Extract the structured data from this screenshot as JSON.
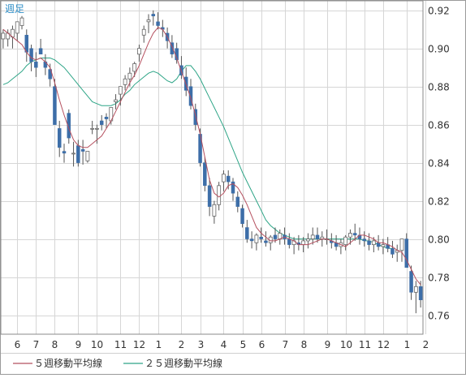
{
  "chart_data": {
    "type": "candlestick",
    "period_label": "週足",
    "x_tick_labels": [
      "6",
      "7",
      "8",
      "9",
      "10",
      "11",
      "12",
      "1",
      "2",
      "3",
      "4",
      "5",
      "6",
      "7",
      "8",
      "9",
      "10",
      "11",
      "12",
      "1",
      "2"
    ],
    "x_tick_week_index": [
      3,
      7,
      11,
      16,
      20,
      25,
      29,
      33,
      38,
      42,
      47,
      51,
      55,
      60,
      64,
      69,
      73,
      77,
      81,
      86,
      90
    ],
    "y_ticks": [
      0.76,
      0.78,
      0.8,
      0.82,
      0.84,
      0.86,
      0.88,
      0.9,
      0.92
    ],
    "y_tick_labels": [
      "0.76",
      "0.78",
      "0.80",
      "0.82",
      "0.84",
      "0.86",
      "0.88",
      "0.90",
      "0.92"
    ],
    "ylim": [
      0.75,
      0.925
    ],
    "grid": true,
    "colors": {
      "up": "#ffffff",
      "down": "#3d6ea8",
      "wick": "#555555",
      "ma5": "#b5505f",
      "ma25": "#2ea587"
    },
    "series": [
      {
        "name": "５週移動平均線",
        "color": "#b5505f",
        "values": [
          0.91,
          0.908,
          0.906,
          0.904,
          0.902,
          0.898,
          0.895,
          0.894,
          0.895,
          0.893,
          0.89,
          0.882,
          0.873,
          0.865,
          0.858,
          0.852,
          0.849,
          0.848,
          0.848,
          0.85,
          0.852,
          0.854,
          0.858,
          0.862,
          0.867,
          0.872,
          0.877,
          0.882,
          0.886,
          0.891,
          0.897,
          0.903,
          0.908,
          0.911,
          0.91,
          0.906,
          0.901,
          0.895,
          0.888,
          0.881,
          0.874,
          0.865,
          0.855,
          0.843,
          0.831,
          0.824,
          0.822,
          0.824,
          0.828,
          0.829,
          0.827,
          0.823,
          0.818,
          0.812,
          0.806,
          0.803,
          0.801,
          0.799,
          0.799,
          0.8,
          0.801,
          0.8,
          0.799,
          0.797,
          0.797,
          0.797,
          0.798,
          0.799,
          0.8,
          0.8,
          0.799,
          0.798,
          0.797,
          0.796,
          0.798,
          0.8,
          0.802,
          0.802,
          0.801,
          0.8,
          0.798,
          0.798,
          0.797,
          0.796,
          0.794,
          0.793,
          0.789,
          0.784,
          0.779,
          0.776
        ]
      },
      {
        "name": "２５週移動平均線",
        "color": "#2ea587",
        "values": [
          0.881,
          0.882,
          0.884,
          0.886,
          0.888,
          0.891,
          0.893,
          0.894,
          0.895,
          0.895,
          0.895,
          0.894,
          0.892,
          0.89,
          0.887,
          0.884,
          0.881,
          0.878,
          0.875,
          0.872,
          0.871,
          0.87,
          0.87,
          0.87,
          0.871,
          0.873,
          0.876,
          0.878,
          0.881,
          0.883,
          0.885,
          0.887,
          0.888,
          0.887,
          0.885,
          0.883,
          0.882,
          0.884,
          0.888,
          0.891,
          0.891,
          0.888,
          0.884,
          0.879,
          0.874,
          0.869,
          0.864,
          0.859,
          0.853,
          0.847,
          0.841,
          0.835,
          0.83,
          0.825,
          0.82,
          0.815,
          0.81,
          0.807,
          0.805,
          0.803,
          0.802,
          0.801,
          0.8,
          0.8,
          0.8,
          0.8,
          0.8,
          0.8,
          0.8,
          0.8,
          0.8,
          0.8,
          0.8,
          0.8,
          0.8,
          0.8,
          0.8,
          0.799,
          0.799,
          0.798,
          0.797,
          0.796,
          0.795,
          0.795
        ]
      },
      {
        "name": "candles",
        "values": [
          [
            0.905,
            0.91,
            0.9,
            0.908
          ],
          [
            0.905,
            0.91,
            0.901,
            0.908
          ],
          [
            0.906,
            0.912,
            0.9,
            0.91
          ],
          [
            0.908,
            0.912,
            0.904,
            0.914
          ],
          [
            0.912,
            0.917,
            0.91,
            0.916
          ],
          [
            0.907,
            0.91,
            0.893,
            0.898
          ],
          [
            0.9,
            0.902,
            0.888,
            0.893
          ],
          [
            0.893,
            0.898,
            0.885,
            0.89
          ],
          [
            0.9,
            0.905,
            0.897,
            0.897
          ],
          [
            0.893,
            0.897,
            0.886,
            0.89
          ],
          [
            0.889,
            0.892,
            0.88,
            0.884
          ],
          [
            0.88,
            0.884,
            0.86,
            0.86
          ],
          [
            0.858,
            0.862,
            0.843,
            0.848
          ],
          [
            0.846,
            0.85,
            0.84,
            0.845
          ],
          [
            0.866,
            0.868,
            0.85,
            0.853
          ],
          [
            0.845,
            0.851,
            0.838,
            0.845
          ],
          [
            0.849,
            0.852,
            0.838,
            0.84
          ],
          [
            0.847,
            0.852,
            0.839,
            0.846
          ],
          [
            0.841,
            0.846,
            0.84,
            0.846
          ],
          [
            0.858,
            0.862,
            0.855,
            0.858
          ],
          [
            0.858,
            0.86,
            0.85,
            0.858
          ],
          [
            0.862,
            0.865,
            0.857,
            0.86
          ],
          [
            0.864,
            0.866,
            0.858,
            0.863
          ],
          [
            0.862,
            0.867,
            0.86,
            0.869
          ],
          [
            0.872,
            0.876,
            0.868,
            0.873
          ],
          [
            0.876,
            0.88,
            0.87,
            0.88
          ],
          [
            0.881,
            0.886,
            0.878,
            0.884
          ],
          [
            0.884,
            0.89,
            0.88,
            0.887
          ],
          [
            0.888,
            0.893,
            0.885,
            0.892
          ],
          [
            0.897,
            0.902,
            0.893,
            0.9
          ],
          [
            0.907,
            0.912,
            0.903,
            0.91
          ],
          [
            0.914,
            0.918,
            0.908,
            0.915
          ],
          [
            0.918,
            0.92,
            0.912,
            0.917
          ],
          [
            0.914,
            0.919,
            0.91,
            0.912
          ],
          [
            0.911,
            0.915,
            0.906,
            0.91
          ],
          [
            0.908,
            0.911,
            0.9,
            0.904
          ],
          [
            0.903,
            0.907,
            0.895,
            0.897
          ],
          [
            0.9,
            0.903,
            0.892,
            0.894
          ],
          [
            0.891,
            0.896,
            0.884,
            0.886
          ],
          [
            0.885,
            0.89,
            0.875,
            0.878
          ],
          [
            0.88,
            0.884,
            0.868,
            0.87
          ],
          [
            0.868,
            0.871,
            0.857,
            0.86
          ],
          [
            0.855,
            0.858,
            0.838,
            0.84
          ],
          [
            0.84,
            0.843,
            0.825,
            0.828
          ],
          [
            0.828,
            0.832,
            0.812,
            0.817
          ],
          [
            0.812,
            0.82,
            0.808,
            0.818
          ],
          [
            0.818,
            0.83,
            0.815,
            0.828
          ],
          [
            0.83,
            0.836,
            0.825,
            0.834
          ],
          [
            0.833,
            0.836,
            0.826,
            0.83
          ],
          [
            0.83,
            0.832,
            0.82,
            0.824
          ],
          [
            0.822,
            0.825,
            0.814,
            0.817
          ],
          [
            0.816,
            0.818,
            0.806,
            0.808
          ],
          [
            0.806,
            0.81,
            0.798,
            0.8
          ],
          [
            0.8,
            0.804,
            0.795,
            0.799
          ],
          [
            0.798,
            0.803,
            0.794,
            0.802
          ],
          [
            0.801,
            0.806,
            0.798,
            0.8
          ],
          [
            0.799,
            0.804,
            0.796,
            0.798
          ],
          [
            0.798,
            0.802,
            0.794,
            0.801
          ],
          [
            0.802,
            0.806,
            0.798,
            0.8
          ],
          [
            0.8,
            0.805,
            0.797,
            0.803
          ],
          [
            0.802,
            0.806,
            0.797,
            0.8
          ],
          [
            0.8,
            0.803,
            0.795,
            0.797
          ],
          [
            0.797,
            0.801,
            0.792,
            0.799
          ],
          [
            0.798,
            0.802,
            0.794,
            0.797
          ],
          [
            0.797,
            0.801,
            0.793,
            0.799
          ],
          [
            0.799,
            0.803,
            0.795,
            0.8
          ],
          [
            0.8,
            0.806,
            0.797,
            0.802
          ],
          [
            0.802,
            0.806,
            0.798,
            0.8
          ],
          [
            0.8,
            0.804,
            0.796,
            0.801
          ],
          [
            0.8,
            0.805,
            0.797,
            0.8
          ],
          [
            0.799,
            0.803,
            0.795,
            0.798
          ],
          [
            0.798,
            0.802,
            0.794,
            0.796
          ],
          [
            0.796,
            0.8,
            0.792,
            0.798
          ],
          [
            0.797,
            0.802,
            0.794,
            0.801
          ],
          [
            0.801,
            0.805,
            0.797,
            0.803
          ],
          [
            0.803,
            0.808,
            0.799,
            0.802
          ],
          [
            0.802,
            0.806,
            0.797,
            0.8
          ],
          [
            0.8,
            0.804,
            0.796,
            0.799
          ],
          [
            0.799,
            0.803,
            0.794,
            0.797
          ],
          [
            0.797,
            0.801,
            0.793,
            0.799
          ],
          [
            0.798,
            0.802,
            0.794,
            0.796
          ],
          [
            0.796,
            0.8,
            0.792,
            0.797
          ],
          [
            0.797,
            0.801,
            0.793,
            0.795
          ],
          [
            0.795,
            0.799,
            0.79,
            0.792
          ],
          [
            0.793,
            0.797,
            0.788,
            0.794
          ],
          [
            0.794,
            0.798,
            0.788,
            0.8
          ],
          [
            0.8,
            0.803,
            0.785,
            0.785
          ],
          [
            0.783,
            0.786,
            0.768,
            0.772
          ],
          [
            0.772,
            0.778,
            0.761,
            0.775
          ],
          [
            0.775,
            0.778,
            0.764,
            0.768
          ]
        ]
      }
    ]
  },
  "legend": {
    "ma5_label": "５週移動平均線",
    "ma25_label": "２５週移動平均線"
  }
}
